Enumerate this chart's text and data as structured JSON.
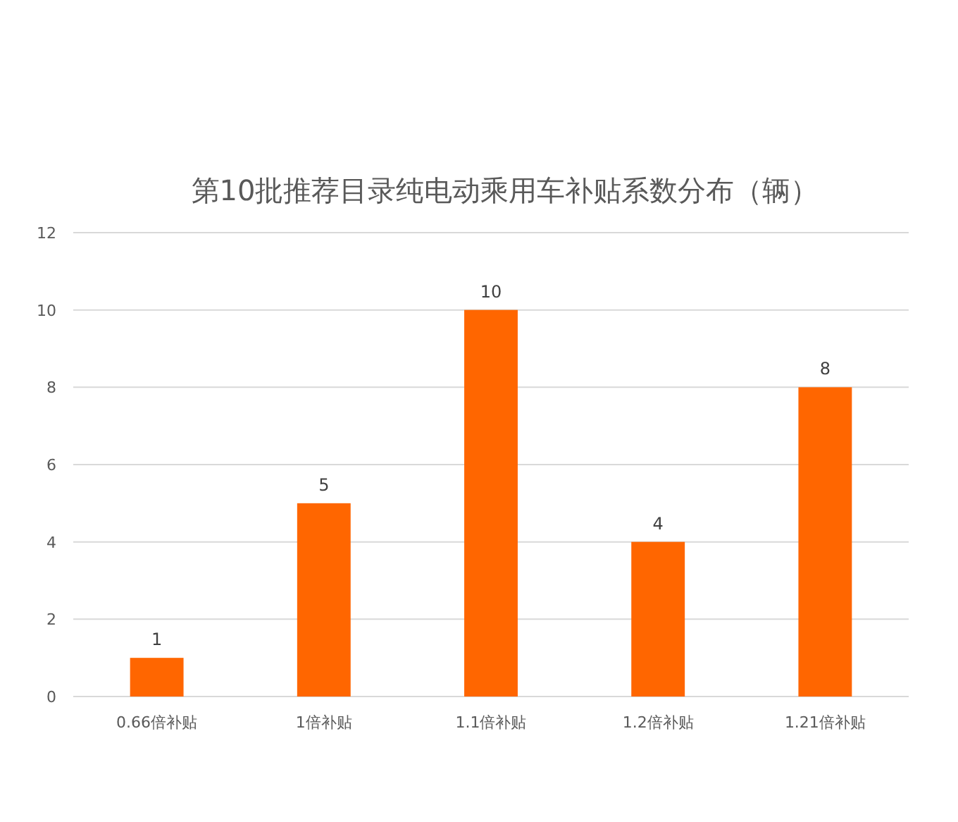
{
  "chart_data": {
    "type": "bar",
    "title": "第10批推荐目录纯电动乘用车补贴系数分布（辆）",
    "categories": [
      "0.66倍补贴",
      "1倍补贴",
      "1.1倍补贴",
      "1.2倍补贴",
      "1.21倍补贴"
    ],
    "values": [
      1,
      5,
      10,
      4,
      8
    ],
    "color": "#ff6600",
    "ylim": [
      0,
      12
    ],
    "yticks": [
      0,
      2,
      4,
      6,
      8,
      10,
      12
    ],
    "grid": "y",
    "data_labels": true
  }
}
